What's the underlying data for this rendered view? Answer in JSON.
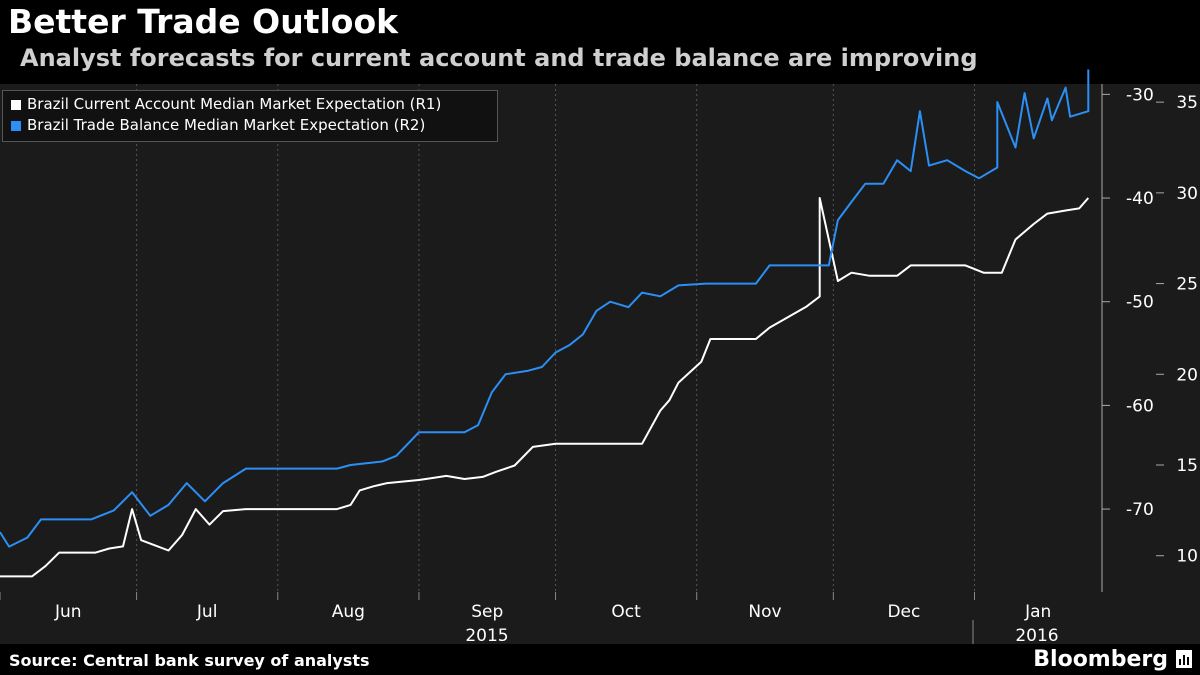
{
  "header": {
    "title": "Better Trade Outlook",
    "subtitle": "Analyst forecasts for current account and trade balance are improving"
  },
  "footer": {
    "source": "Source: Central bank survey of analysts",
    "brand": "Bloomberg",
    "brand_icon": "bloomberg-chart-icon"
  },
  "chart_data": {
    "type": "line",
    "background": "#1b1b1b",
    "grid": "vertical dashed",
    "legend_position": "top-left",
    "x_axis": {
      "start": "2015-06-01",
      "end": "2016-01-29",
      "tick_labels": [
        "Jun",
        "Jul",
        "Aug",
        "Sep",
        "Oct",
        "Nov",
        "Dec",
        "Jan"
      ],
      "year_labels": [
        "2015",
        "2016"
      ]
    },
    "y_axis_r1": {
      "range": [
        -78,
        -29
      ],
      "ticks": [
        -30,
        -40,
        -50,
        -60,
        -70
      ]
    },
    "y_axis_r2": {
      "range": [
        8,
        36
      ],
      "ticks": [
        35,
        30,
        25,
        20,
        15,
        10
      ]
    },
    "series": [
      {
        "name": "Brazil Current Account Median Market Expectation  (R1)",
        "color": "#ffffff",
        "axis": "R1",
        "points": [
          [
            "2015-06-01",
            -76.5
          ],
          [
            "2015-06-08",
            -76.5
          ],
          [
            "2015-06-11",
            -75.5
          ],
          [
            "2015-06-14",
            -74.2
          ],
          [
            "2015-06-22",
            -74.2
          ],
          [
            "2015-06-25",
            -73.8
          ],
          [
            "2015-06-28",
            -73.6
          ],
          [
            "2015-06-30",
            -70.0
          ],
          [
            "2015-07-02",
            -73.0
          ],
          [
            "2015-07-05",
            -73.5
          ],
          [
            "2015-07-08",
            -74.0
          ],
          [
            "2015-07-11",
            -72.5
          ],
          [
            "2015-07-14",
            -70.0
          ],
          [
            "2015-07-17",
            -71.5
          ],
          [
            "2015-07-20",
            -70.2
          ],
          [
            "2015-07-25",
            -70.0
          ],
          [
            "2015-08-04",
            -70.0
          ],
          [
            "2015-08-14",
            -70.0
          ],
          [
            "2015-08-17",
            -69.6
          ],
          [
            "2015-08-19",
            -68.2
          ],
          [
            "2015-08-22",
            -67.8
          ],
          [
            "2015-08-25",
            -67.5
          ],
          [
            "2015-09-01",
            -67.2
          ],
          [
            "2015-09-04",
            -67.0
          ],
          [
            "2015-09-07",
            -66.8
          ],
          [
            "2015-09-11",
            -67.1
          ],
          [
            "2015-09-15",
            -66.9
          ],
          [
            "2015-09-18",
            -66.4
          ],
          [
            "2015-09-22",
            -65.8
          ],
          [
            "2015-09-26",
            -64.0
          ],
          [
            "2015-10-01",
            -63.7
          ],
          [
            "2015-10-20",
            -63.7
          ],
          [
            "2015-10-24",
            -60.5
          ],
          [
            "2015-10-26",
            -59.5
          ],
          [
            "2015-10-28",
            -57.8
          ],
          [
            "2015-11-02",
            -55.8
          ],
          [
            "2015-11-04",
            -53.6
          ],
          [
            "2015-11-14",
            -53.6
          ],
          [
            "2015-11-17",
            -52.5
          ],
          [
            "2015-11-21",
            -51.5
          ],
          [
            "2015-11-25",
            -50.5
          ],
          [
            "2015-11-28",
            -49.5
          ],
          [
            "2015-12-02",
            -48.0
          ],
          [
            "2015-12-05",
            -47.2
          ],
          [
            "2015-12-09",
            -47.5
          ],
          [
            "2015-12-15",
            -47.5
          ],
          [
            "2015-12-18",
            -46.5
          ],
          [
            "2015-12-30",
            -46.5
          ],
          [
            "2016-01-03",
            -47.2
          ],
          [
            "2016-01-07",
            -47.2
          ],
          [
            "2016-01-10",
            -44.0
          ],
          [
            "2016-01-14",
            -42.5
          ],
          [
            "2016-01-17",
            -41.5
          ],
          [
            "2016-01-21",
            -41.2
          ],
          [
            "2016-01-24",
            -41.0
          ],
          [
            "2016-01-26",
            -40.0
          ],
          [
            "2015-11-28",
            -40.0
          ]
        ]
      },
      {
        "name": "Brazil Trade Balance Median Market Expectation  (R2)",
        "color": "#2b8ff5",
        "axis": "R2",
        "points": [
          [
            "2015-06-01",
            11.3
          ],
          [
            "2015-06-03",
            10.5
          ],
          [
            "2015-06-07",
            11.0
          ],
          [
            "2015-06-10",
            12.0
          ],
          [
            "2015-06-21",
            12.0
          ],
          [
            "2015-06-26",
            12.5
          ],
          [
            "2015-06-30",
            13.5
          ],
          [
            "2015-07-04",
            12.2
          ],
          [
            "2015-07-08",
            12.8
          ],
          [
            "2015-07-12",
            14.0
          ],
          [
            "2015-07-16",
            13.0
          ],
          [
            "2015-07-20",
            14.0
          ],
          [
            "2015-07-25",
            14.8
          ],
          [
            "2015-08-04",
            14.8
          ],
          [
            "2015-08-14",
            14.8
          ],
          [
            "2015-08-17",
            15.0
          ],
          [
            "2015-08-24",
            15.2
          ],
          [
            "2015-08-27",
            15.5
          ],
          [
            "2015-09-01",
            16.8
          ],
          [
            "2015-09-07",
            16.8
          ],
          [
            "2015-09-11",
            16.8
          ],
          [
            "2015-09-14",
            17.2
          ],
          [
            "2015-09-17",
            19.0
          ],
          [
            "2015-09-20",
            20.0
          ],
          [
            "2015-09-25",
            20.2
          ],
          [
            "2015-09-28",
            20.4
          ],
          [
            "2015-10-01",
            21.2
          ],
          [
            "2015-10-04",
            21.6
          ],
          [
            "2015-10-07",
            22.2
          ],
          [
            "2015-10-10",
            23.5
          ],
          [
            "2015-10-13",
            24.0
          ],
          [
            "2015-10-17",
            23.7
          ],
          [
            "2015-10-20",
            24.5
          ],
          [
            "2015-10-24",
            24.3
          ],
          [
            "2015-10-28",
            24.9
          ],
          [
            "2015-11-03",
            25.0
          ],
          [
            "2015-11-14",
            25.0
          ],
          [
            "2015-11-17",
            26.0
          ],
          [
            "2015-11-27",
            26.0
          ],
          [
            "2015-11-30",
            26.0
          ],
          [
            "2015-12-02",
            28.5
          ],
          [
            "2015-12-05",
            29.5
          ],
          [
            "2015-12-08",
            30.5
          ],
          [
            "2015-12-12",
            30.5
          ],
          [
            "2015-12-15",
            31.8
          ],
          [
            "2015-12-18",
            31.2
          ],
          [
            "2015-12-22",
            31.5
          ],
          [
            "2015-12-26",
            31.8
          ],
          [
            "2015-12-30",
            31.2
          ],
          [
            "2016-01-02",
            30.8
          ],
          [
            "2016-01-06",
            31.4
          ],
          [
            "2016-01-10",
            32.5
          ],
          [
            "2016-01-14",
            33.0
          ],
          [
            "2016-01-18",
            34.0
          ],
          [
            "2016-01-22",
            34.2
          ],
          [
            "2016-01-26",
            34.5
          ],
          [
            "2015-12-20",
            34.5
          ],
          [
            "2016-01-06",
            35.0
          ],
          [
            "2016-01-12",
            35.5
          ],
          [
            "2016-01-17",
            35.2
          ],
          [
            "2016-01-21",
            35.8
          ],
          [
            "2016-01-26",
            36.8
          ]
        ]
      }
    ]
  }
}
